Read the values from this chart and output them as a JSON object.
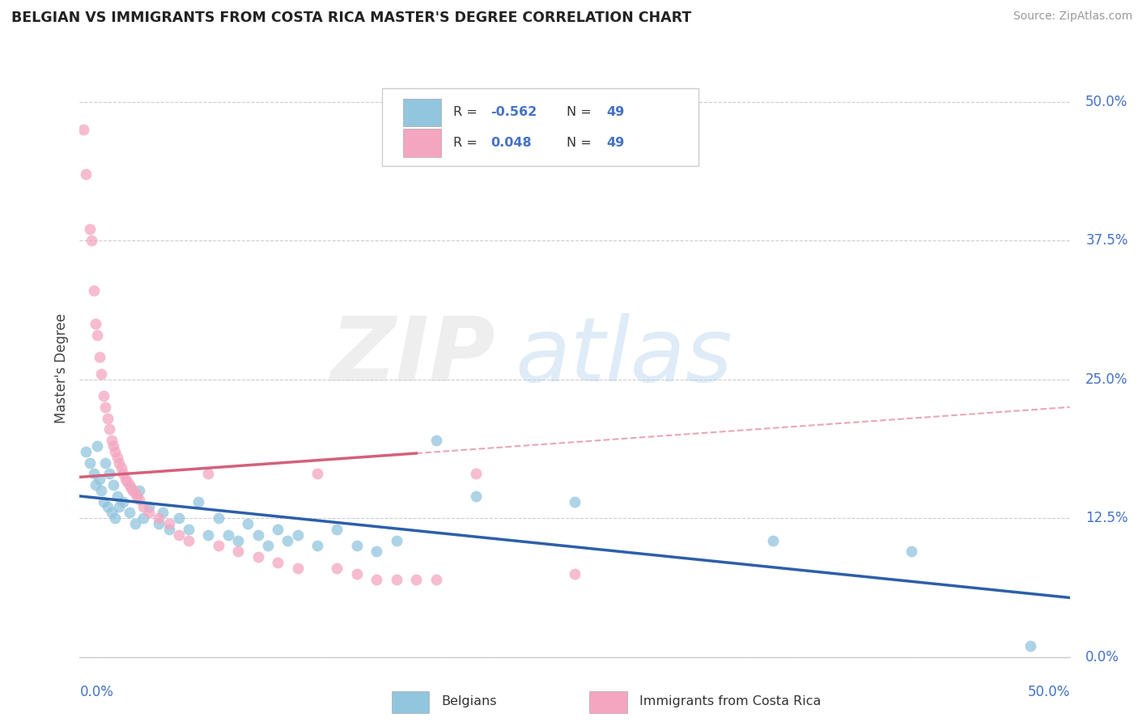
{
  "title": "BELGIAN VS IMMIGRANTS FROM COSTA RICA MASTER'S DEGREE CORRELATION CHART",
  "source": "Source: ZipAtlas.com",
  "ylabel": "Master's Degree",
  "xlim": [
    0.0,
    50.0
  ],
  "ylim": [
    0.0,
    52.0
  ],
  "ytick_values": [
    0.0,
    12.5,
    25.0,
    37.5,
    50.0
  ],
  "legend_r_blue": "-0.562",
  "legend_n_blue": "49",
  "legend_r_pink": "0.048",
  "legend_n_pink": "49",
  "blue_color": "#92c5de",
  "pink_color": "#f4a6c0",
  "trend_blue_color": "#2c5fa8",
  "trend_pink_color": "#d4607a",
  "blue_points": [
    [
      0.3,
      18.5
    ],
    [
      0.5,
      17.5
    ],
    [
      0.7,
      16.5
    ],
    [
      0.8,
      15.5
    ],
    [
      0.9,
      19.0
    ],
    [
      1.0,
      16.0
    ],
    [
      1.1,
      15.0
    ],
    [
      1.2,
      14.0
    ],
    [
      1.3,
      17.5
    ],
    [
      1.4,
      13.5
    ],
    [
      1.5,
      16.5
    ],
    [
      1.6,
      13.0
    ],
    [
      1.7,
      15.5
    ],
    [
      1.8,
      12.5
    ],
    [
      1.9,
      14.5
    ],
    [
      2.0,
      13.5
    ],
    [
      2.2,
      14.0
    ],
    [
      2.5,
      13.0
    ],
    [
      2.8,
      12.0
    ],
    [
      3.0,
      15.0
    ],
    [
      3.2,
      12.5
    ],
    [
      3.5,
      13.5
    ],
    [
      4.0,
      12.0
    ],
    [
      4.2,
      13.0
    ],
    [
      4.5,
      11.5
    ],
    [
      5.0,
      12.5
    ],
    [
      5.5,
      11.5
    ],
    [
      6.0,
      14.0
    ],
    [
      6.5,
      11.0
    ],
    [
      7.0,
      12.5
    ],
    [
      7.5,
      11.0
    ],
    [
      8.0,
      10.5
    ],
    [
      8.5,
      12.0
    ],
    [
      9.0,
      11.0
    ],
    [
      9.5,
      10.0
    ],
    [
      10.0,
      11.5
    ],
    [
      10.5,
      10.5
    ],
    [
      11.0,
      11.0
    ],
    [
      12.0,
      10.0
    ],
    [
      13.0,
      11.5
    ],
    [
      14.0,
      10.0
    ],
    [
      15.0,
      9.5
    ],
    [
      16.0,
      10.5
    ],
    [
      18.0,
      19.5
    ],
    [
      20.0,
      14.5
    ],
    [
      25.0,
      14.0
    ],
    [
      35.0,
      10.5
    ],
    [
      42.0,
      9.5
    ],
    [
      48.0,
      1.0
    ]
  ],
  "pink_points": [
    [
      0.2,
      47.5
    ],
    [
      0.3,
      43.5
    ],
    [
      0.5,
      38.5
    ],
    [
      0.6,
      37.5
    ],
    [
      0.7,
      33.0
    ],
    [
      0.8,
      30.0
    ],
    [
      0.9,
      29.0
    ],
    [
      1.0,
      27.0
    ],
    [
      1.1,
      25.5
    ],
    [
      1.2,
      23.5
    ],
    [
      1.3,
      22.5
    ],
    [
      1.4,
      21.5
    ],
    [
      1.5,
      20.5
    ],
    [
      1.6,
      19.5
    ],
    [
      1.7,
      19.0
    ],
    [
      1.8,
      18.5
    ],
    [
      1.9,
      18.0
    ],
    [
      2.0,
      17.5
    ],
    [
      2.1,
      17.0
    ],
    [
      2.2,
      16.5
    ],
    [
      2.3,
      16.0
    ],
    [
      2.4,
      15.8
    ],
    [
      2.5,
      15.5
    ],
    [
      2.6,
      15.2
    ],
    [
      2.7,
      15.0
    ],
    [
      2.8,
      14.8
    ],
    [
      2.9,
      14.5
    ],
    [
      3.0,
      14.2
    ],
    [
      3.2,
      13.5
    ],
    [
      3.5,
      13.0
    ],
    [
      4.0,
      12.5
    ],
    [
      4.5,
      12.0
    ],
    [
      5.0,
      11.0
    ],
    [
      5.5,
      10.5
    ],
    [
      6.5,
      16.5
    ],
    [
      7.0,
      10.0
    ],
    [
      8.0,
      9.5
    ],
    [
      9.0,
      9.0
    ],
    [
      10.0,
      8.5
    ],
    [
      11.0,
      8.0
    ],
    [
      12.0,
      16.5
    ],
    [
      13.0,
      8.0
    ],
    [
      14.0,
      7.5
    ],
    [
      15.0,
      7.0
    ],
    [
      16.0,
      7.0
    ],
    [
      17.0,
      7.0
    ],
    [
      18.0,
      7.0
    ],
    [
      20.0,
      16.5
    ],
    [
      25.0,
      7.5
    ]
  ],
  "pink_solid_end_x": 17.0,
  "blue_trend_start_y": 15.8,
  "blue_trend_end_y": 0.5,
  "pink_trend_start_y": 16.2,
  "pink_trend_end_y": 22.5
}
